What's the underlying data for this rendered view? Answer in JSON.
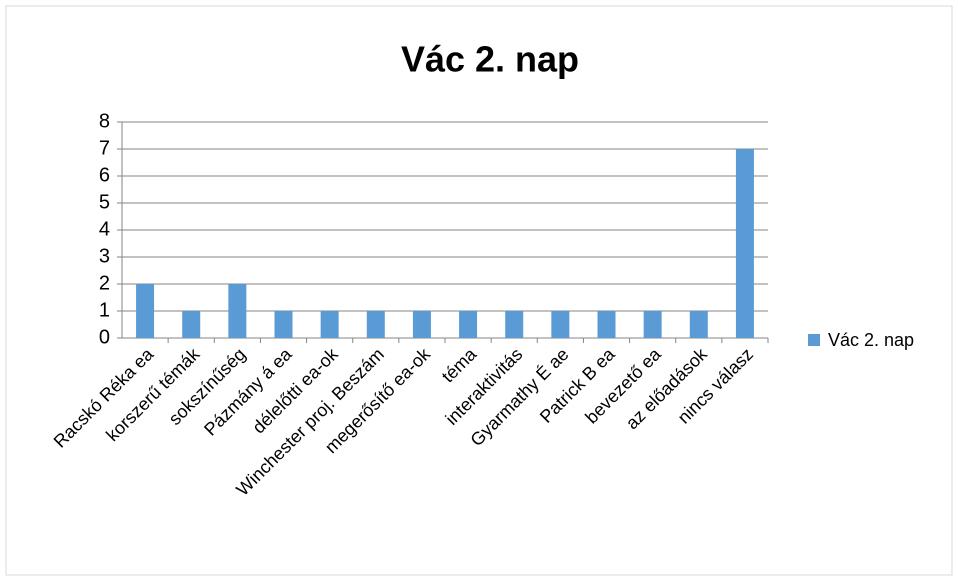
{
  "chart_data": {
    "type": "bar",
    "title": "Vác 2. nap",
    "categories": [
      "Racskó Réka ea",
      "korszerű témák",
      "sokszínűség",
      "Pázmány á ea",
      "délelőtti ea-ok",
      "Winchester proj. Beszám",
      "megerősítő ea-ok",
      "téma",
      "interaktivitás",
      "Gyarmathy É ae",
      "Patrick B ea",
      "bevezető ea",
      "az előadások",
      "nincs válasz"
    ],
    "series": [
      {
        "name": "Vác 2. nap",
        "color": "#5b9bd5",
        "values": [
          2,
          1,
          2,
          1,
          1,
          1,
          1,
          1,
          1,
          1,
          1,
          1,
          1,
          7
        ]
      }
    ],
    "ylim": [
      0,
      8
    ],
    "yticks": [
      0,
      1,
      2,
      3,
      4,
      5,
      6,
      7,
      8
    ],
    "grid": true,
    "legend": "right"
  }
}
